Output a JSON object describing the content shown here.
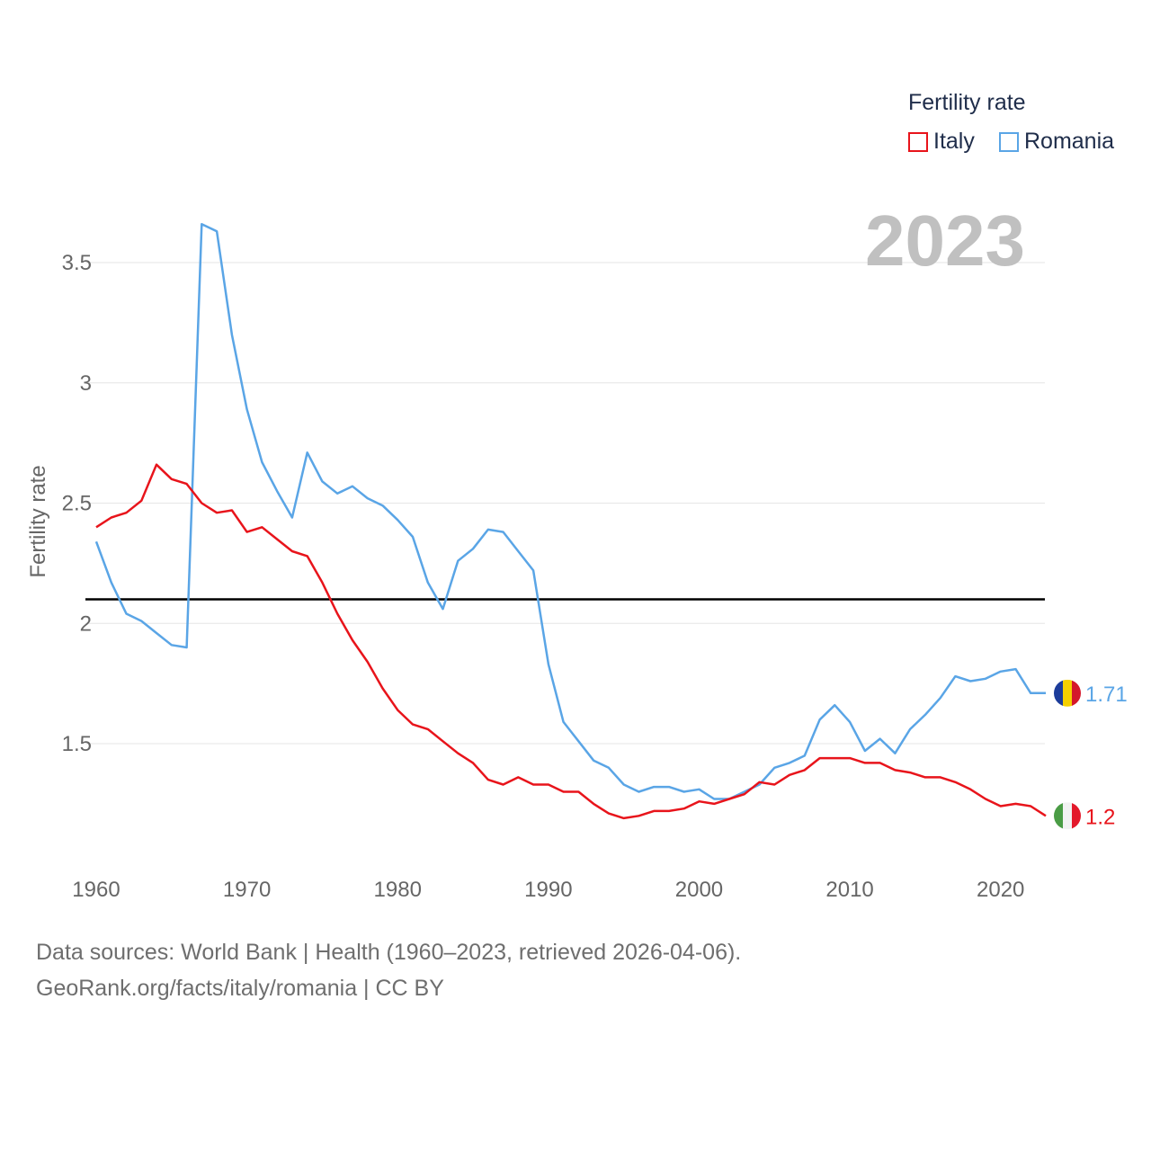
{
  "legend": {
    "title": "Fertility rate",
    "items": [
      {
        "label": "Italy",
        "color": "#e8141b"
      },
      {
        "label": "Romania",
        "color": "#5aa5e6"
      }
    ]
  },
  "year_label": "2023",
  "footer": {
    "line1": "Data sources: World Bank | Health (1960–2023, retrieved 2026-04-06).",
    "line2": "GeoRank.org/facts/italy/romania | CC BY"
  },
  "chart_data": {
    "type": "line",
    "title": "Fertility rate",
    "xlabel": "",
    "ylabel": "Fertility rate",
    "xlim": [
      1960,
      2023
    ],
    "ylim": [
      1.0,
      3.6
    ],
    "x_ticks": [
      1960,
      1970,
      1980,
      1990,
      2000,
      2010,
      2020
    ],
    "x_tick_labels": [
      "1960",
      "1970",
      "1980",
      "1990",
      "2000",
      "2010",
      "2020"
    ],
    "y_ticks": [
      1.5,
      2,
      2.5,
      3,
      3.5
    ],
    "y_tick_labels": [
      "1.5",
      "2",
      "2.5",
      "3",
      "3.5"
    ],
    "grid": true,
    "reference_line": {
      "y": 2.1,
      "color": "#000000"
    },
    "x": [
      1960,
      1961,
      1962,
      1963,
      1964,
      1965,
      1966,
      1967,
      1968,
      1969,
      1970,
      1971,
      1972,
      1973,
      1974,
      1975,
      1976,
      1977,
      1978,
      1979,
      1980,
      1981,
      1982,
      1983,
      1984,
      1985,
      1986,
      1987,
      1988,
      1989,
      1990,
      1991,
      1992,
      1993,
      1994,
      1995,
      1996,
      1997,
      1998,
      1999,
      2000,
      2001,
      2002,
      2003,
      2004,
      2005,
      2006,
      2007,
      2008,
      2009,
      2010,
      2011,
      2012,
      2013,
      2014,
      2015,
      2016,
      2017,
      2018,
      2019,
      2020,
      2021,
      2022,
      2023
    ],
    "series": [
      {
        "name": "Italy",
        "color": "#e8141b",
        "end_label": "1.2",
        "values": [
          2.4,
          2.44,
          2.46,
          2.51,
          2.66,
          2.6,
          2.58,
          2.5,
          2.46,
          2.47,
          2.38,
          2.4,
          2.35,
          2.3,
          2.28,
          2.17,
          2.04,
          1.93,
          1.84,
          1.73,
          1.64,
          1.58,
          1.56,
          1.51,
          1.46,
          1.42,
          1.35,
          1.33,
          1.36,
          1.33,
          1.33,
          1.3,
          1.3,
          1.25,
          1.21,
          1.19,
          1.2,
          1.22,
          1.22,
          1.23,
          1.26,
          1.25,
          1.27,
          1.29,
          1.34,
          1.33,
          1.37,
          1.39,
          1.44,
          1.44,
          1.44,
          1.42,
          1.42,
          1.39,
          1.38,
          1.36,
          1.36,
          1.34,
          1.31,
          1.27,
          1.24,
          1.25,
          1.24,
          1.2
        ]
      },
      {
        "name": "Romania",
        "color": "#5aa5e6",
        "end_label": "1.71",
        "values": [
          2.34,
          2.17,
          2.04,
          2.01,
          1.96,
          1.91,
          1.9,
          3.66,
          3.63,
          3.2,
          2.89,
          2.67,
          2.55,
          2.44,
          2.71,
          2.59,
          2.54,
          2.57,
          2.52,
          2.49,
          2.43,
          2.36,
          2.17,
          2.06,
          2.26,
          2.31,
          2.39,
          2.38,
          2.3,
          2.22,
          1.83,
          1.59,
          1.51,
          1.43,
          1.4,
          1.33,
          1.3,
          1.32,
          1.32,
          1.3,
          1.31,
          1.27,
          1.27,
          1.3,
          1.33,
          1.4,
          1.42,
          1.45,
          1.6,
          1.66,
          1.59,
          1.47,
          1.52,
          1.46,
          1.56,
          1.62,
          1.69,
          1.78,
          1.76,
          1.77,
          1.8,
          1.81,
          1.71,
          1.71
        ]
      }
    ]
  }
}
